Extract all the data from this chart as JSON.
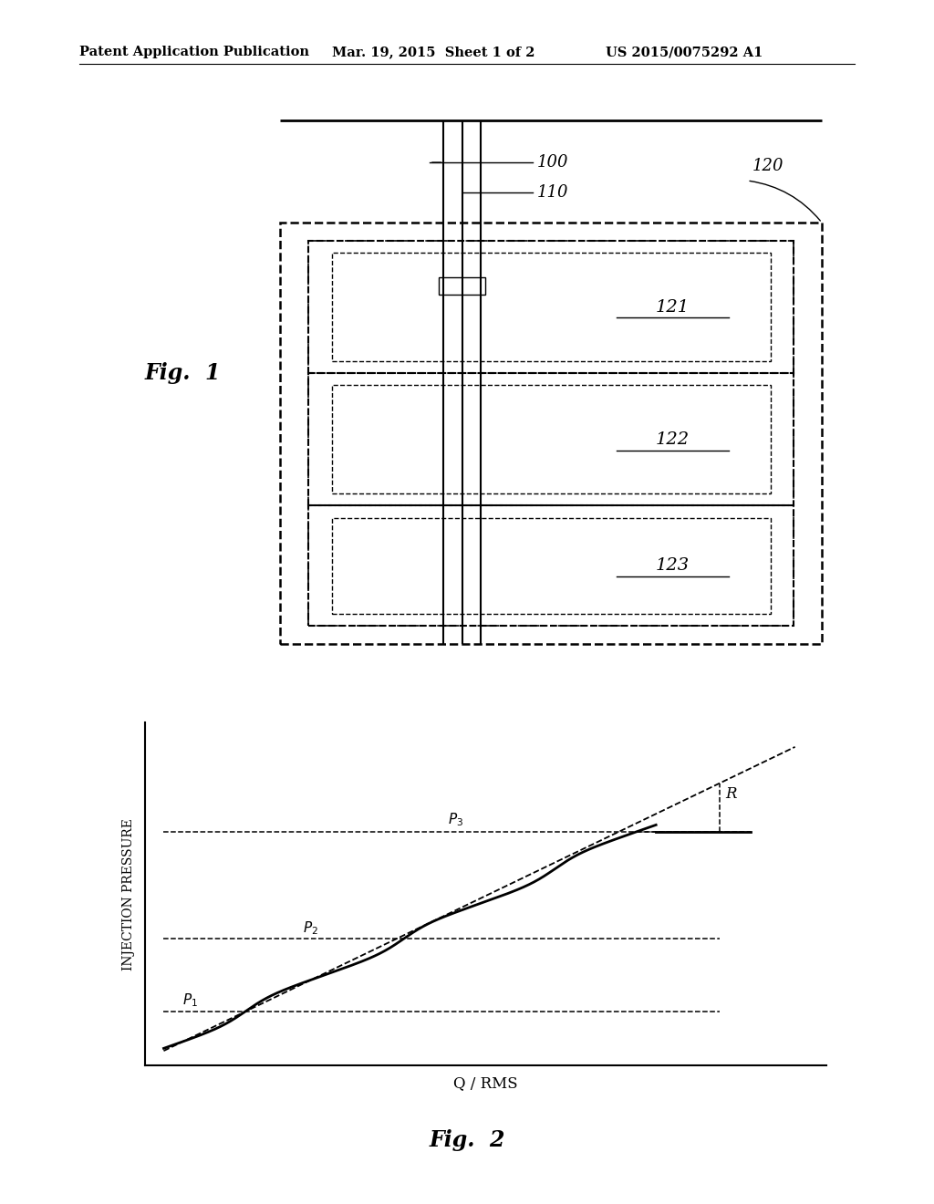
{
  "header_left": "Patent Application Publication",
  "header_mid": "Mar. 19, 2015  Sheet 1 of 2",
  "header_right": "US 2015/0075292 A1",
  "fig1_label": "Fig.  1",
  "fig2_label": "Fig.  2",
  "label_100": "100",
  "label_110": "110",
  "label_120": "120",
  "label_121": "121",
  "label_122": "122",
  "label_123": "123",
  "label_R": "R",
  "xlabel": "Q / RMS",
  "ylabel": "INJECTION PRESSURE",
  "bg_color": "#ffffff",
  "line_color": "#000000"
}
